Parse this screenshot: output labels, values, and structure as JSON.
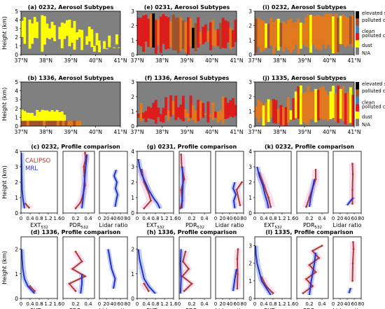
{
  "figure": {
    "aerosol_colors": {
      "elevated smoke": "#000000",
      "polluted dust": "#a0522d",
      "clean": "#4682b4",
      "polluted continental/smoke": "#dd1c1c",
      "dust": "#ffff00",
      "N/A": "#808080",
      "orange_mix": "#e07820"
    },
    "profile_colors": {
      "CALIPSO": "#b03a2e",
      "MRL": "#2d2dc8",
      "MRL_band": "#88aaee",
      "CALIPSO_band": "#f4c2e8"
    },
    "legend_a": [
      "elevated somke",
      "polluted dust",
      "clean",
      "polluted continental/smoke",
      "dust",
      "N/A"
    ],
    "legend_b": [
      "elevated somke",
      "polluted dust",
      "clean",
      "polluted continental/smoke",
      "dust",
      "N/A"
    ],
    "legend_a_title": "",
    "profile_legend": {
      "a": "CALIPSO",
      "b": "MRL"
    },
    "ext_label": "EXT",
    "pdr_label": "PDR",
    "lr_label": "Lidar ratio",
    "sub532": "532",
    "height_label": "Height (km)",
    "lat_ticks": [
      "37°N",
      "38°N",
      "39°N",
      "40°N",
      "41°N"
    ],
    "ext_ticks": [
      "0",
      "0.4",
      "0.8",
      "1.2",
      "1.6"
    ],
    "pdr_ticks": [
      "0",
      "0.2",
      "0.4"
    ],
    "lr_ticks": [
      "0",
      "20",
      "40",
      "60",
      "80"
    ]
  },
  "chart_data": [
    {
      "id": "a",
      "type": "heatmap",
      "title": "(a) 0232, Aerosol Subtypes",
      "ylabel": "Height (km)",
      "xlim": [
        37,
        41
      ],
      "ylim": [
        0,
        5
      ],
      "yticks": [
        "0",
        "1",
        "2",
        "3",
        "4",
        "5"
      ],
      "dominant": [
        "dust",
        "N/A"
      ]
    },
    {
      "id": "e",
      "type": "heatmap",
      "title": "(e) 0231, Aerosol Subtypes",
      "xlim": [
        37,
        41
      ],
      "ylim": [
        0,
        3
      ],
      "yticks": [
        "0",
        "1",
        "2",
        "3"
      ],
      "dominant": [
        "polluted continental/smoke",
        "polluted dust",
        "elevated smoke",
        "N/A"
      ]
    },
    {
      "id": "i",
      "type": "heatmap",
      "title": "(i) 0232, Aerosol Subtypes",
      "xlim": [
        37,
        41
      ],
      "ylim": [
        0,
        3
      ],
      "yticks": [
        "0",
        "1",
        "2",
        "3"
      ],
      "dominant": [
        "polluted dust",
        "dust",
        "N/A"
      ]
    },
    {
      "id": "b",
      "type": "heatmap",
      "title": "(b) 1336, Aerosol Subtypes",
      "ylabel": "Height (km)",
      "xlim": [
        37,
        41
      ],
      "ylim": [
        0,
        5
      ],
      "yticks": [
        "0",
        "1",
        "2",
        "3",
        "4",
        "5"
      ],
      "dominant": [
        "dust",
        "polluted dust",
        "N/A"
      ]
    },
    {
      "id": "f",
      "type": "heatmap",
      "title": "(f) 1336, Aerosol Subtypes",
      "xlim": [
        37,
        41
      ],
      "ylim": [
        0,
        3
      ],
      "yticks": [
        "0",
        "1",
        "2",
        "3"
      ],
      "dominant": [
        "polluted continental/smoke",
        "polluted dust",
        "N/A"
      ]
    },
    {
      "id": "j",
      "type": "heatmap",
      "title": "(j) 1335, Aerosol Subtypes",
      "xlim": [
        37,
        41
      ],
      "ylim": [
        0,
        3
      ],
      "yticks": [
        "0",
        "1",
        "2",
        "3"
      ],
      "dominant": [
        "polluted dust",
        "polluted continental/smoke",
        "N/A"
      ]
    },
    {
      "id": "c",
      "type": "line",
      "title": "(c) 0232, Profile comparison",
      "ylabel": "Height (km)",
      "ylim": [
        0,
        4
      ],
      "yticks": [
        "0",
        "1",
        "2",
        "3",
        "4"
      ],
      "ext_mrl": [
        [
          0.15,
          0.3
        ],
        [
          0.12,
          0.6
        ],
        [
          0.08,
          1.0
        ],
        [
          0.05,
          1.5
        ],
        [
          0.04,
          2.0
        ],
        [
          0.03,
          2.5
        ],
        [
          0.03,
          3.0
        ],
        [
          0.02,
          3.5
        ],
        [
          0.02,
          3.9
        ]
      ],
      "ext_cal": [
        [
          0.35,
          0.35
        ],
        [
          0.2,
          0.6
        ]
      ],
      "pdr_mrl": [
        [
          0.3,
          0.3
        ],
        [
          0.32,
          1.0
        ],
        [
          0.34,
          2.0
        ],
        [
          0.36,
          3.0
        ],
        [
          0.38,
          3.8
        ]
      ],
      "pdr_cal": [
        [
          0.2,
          0.3
        ],
        [
          0.28,
          0.7
        ],
        [
          0.32,
          1.2
        ],
        [
          0.35,
          1.8
        ],
        [
          0.34,
          2.4
        ],
        [
          0.33,
          3.0
        ],
        [
          0.36,
          3.5
        ],
        [
          0.35,
          3.9
        ]
      ],
      "lr_mrl": [
        [
          45,
          0.4
        ],
        [
          48,
          0.8
        ],
        [
          52,
          1.2
        ],
        [
          46,
          1.6
        ],
        [
          50,
          2.0
        ],
        [
          42,
          2.4
        ],
        [
          48,
          2.8
        ]
      ],
      "lr_cal": []
    },
    {
      "id": "g",
      "type": "line",
      "title": "(g) 0231, Profile comparison",
      "ylim": [
        0,
        4
      ],
      "yticks": [
        "0",
        "1",
        "2",
        "3",
        "4"
      ],
      "ext_mrl": [
        [
          1.0,
          0.3
        ],
        [
          0.9,
          0.6
        ],
        [
          0.7,
          1.0
        ],
        [
          0.5,
          1.5
        ],
        [
          0.35,
          2.0
        ],
        [
          0.2,
          2.5
        ],
        [
          0.1,
          3.0
        ],
        [
          0.05,
          3.5
        ]
      ],
      "ext_cal": [
        [
          0.3,
          0.3
        ],
        [
          0.6,
          0.8
        ],
        [
          0.5,
          1.3
        ],
        [
          0.3,
          2.0
        ],
        [
          0.2,
          2.8
        ]
      ],
      "pdr_mrl": [
        [
          0.04,
          0.3
        ],
        [
          0.05,
          1.0
        ],
        [
          0.06,
          2.0
        ],
        [
          0.05,
          3.0
        ]
      ],
      "pdr_cal": [
        [
          0.02,
          0.3
        ],
        [
          0.05,
          0.8
        ],
        [
          0.03,
          1.5
        ],
        [
          0.08,
          2.2
        ],
        [
          0.04,
          3.0
        ],
        [
          0.03,
          3.8
        ]
      ],
      "lr_mrl": [
        [
          55,
          0.3
        ],
        [
          52,
          0.8
        ],
        [
          58,
          1.2
        ],
        [
          50,
          1.6
        ],
        [
          55,
          2.0
        ]
      ],
      "lr_cal": [
        [
          70,
          0.5
        ],
        [
          60,
          1.5
        ],
        [
          75,
          2.0
        ]
      ]
    },
    {
      "id": "k",
      "type": "line",
      "title": "(k) 0232, Profile comparison",
      "ylim": [
        0,
        4
      ],
      "yticks": [
        "0",
        "1",
        "2",
        "3",
        "4"
      ],
      "ext_mrl": [
        [
          0.6,
          0.3
        ],
        [
          0.55,
          0.7
        ],
        [
          0.45,
          1.2
        ],
        [
          0.35,
          1.8
        ],
        [
          0.2,
          2.4
        ],
        [
          0.1,
          3.0
        ]
      ],
      "ext_cal": [
        [
          0.7,
          0.4
        ],
        [
          0.6,
          1.0
        ],
        [
          0.4,
          1.8
        ],
        [
          0.2,
          2.6
        ]
      ],
      "pdr_mrl": [
        [
          0.2,
          0.4
        ],
        [
          0.22,
          1.0
        ],
        [
          0.25,
          1.6
        ],
        [
          0.28,
          2.2
        ]
      ],
      "pdr_cal": [
        [
          0.15,
          0.4
        ],
        [
          0.2,
          1.0
        ],
        [
          0.25,
          1.6
        ],
        [
          0.3,
          2.2
        ],
        [
          0.3,
          2.8
        ]
      ],
      "lr_mrl": [
        [
          40,
          0.5
        ],
        [
          50,
          0.8
        ],
        [
          58,
          1.0
        ]
      ],
      "lr_cal": [
        [
          55,
          0.6
        ],
        [
          55,
          1.5
        ],
        [
          56,
          2.5
        ],
        [
          55,
          3.2
        ]
      ]
    },
    {
      "id": "d",
      "type": "line",
      "title": "(d) 1336, Profile comparison",
      "ylabel": "Height (km)",
      "ylim": [
        0,
        2.5
      ],
      "yticks": [
        "0",
        "1",
        "2"
      ],
      "ext_mrl": [
        [
          0.6,
          0.2
        ],
        [
          0.3,
          0.5
        ],
        [
          0.15,
          0.8
        ],
        [
          0.08,
          1.2
        ],
        [
          0.05,
          1.6
        ],
        [
          0.03,
          2.0
        ]
      ],
      "ext_cal": [
        [
          0.6,
          0.3
        ],
        [
          0.4,
          0.5
        ]
      ],
      "pdr_mrl": [
        [
          0.28,
          0.2
        ],
        [
          0.3,
          0.6
        ],
        [
          0.3,
          1.0
        ]
      ],
      "pdr_cal": [
        [
          0.2,
          0.3
        ],
        [
          0.1,
          0.6
        ],
        [
          0.35,
          0.9
        ],
        [
          0.15,
          1.2
        ],
        [
          0.3,
          1.5
        ],
        [
          0.2,
          1.9
        ]
      ],
      "lr_mrl": [
        [
          40,
          0.4
        ],
        [
          45,
          0.8
        ],
        [
          35,
          1.2
        ],
        [
          30,
          1.6
        ],
        [
          25,
          2.0
        ]
      ],
      "lr_cal": []
    },
    {
      "id": "h",
      "type": "line",
      "title": "(h) 1336, Profile comparison",
      "ylim": [
        0,
        2.5
      ],
      "yticks": [
        "0",
        "1",
        "2"
      ],
      "ext_mrl": [
        [
          0.8,
          0.2
        ],
        [
          0.5,
          0.5
        ],
        [
          0.3,
          0.8
        ],
        [
          0.2,
          1.2
        ],
        [
          0.1,
          1.6
        ],
        [
          0.05,
          2.0
        ]
      ],
      "ext_cal": [
        [
          0.5,
          0.3
        ],
        [
          0.3,
          0.6
        ]
      ],
      "pdr_mrl": [
        [
          0.02,
          0.2
        ],
        [
          0.03,
          0.8
        ],
        [
          0.02,
          1.4
        ],
        [
          0.03,
          2.0
        ]
      ],
      "pdr_cal": [
        [
          0.08,
          0.3
        ],
        [
          0.2,
          0.6
        ],
        [
          0.05,
          0.9
        ],
        [
          0.15,
          1.2
        ],
        [
          0.06,
          1.5
        ],
        [
          0.1,
          1.9
        ]
      ],
      "lr_mrl": [
        [
          50,
          0.3
        ],
        [
          55,
          0.8
        ],
        [
          60,
          1.2
        ]
      ],
      "lr_cal": [
        [
          62,
          0.4
        ],
        [
          63,
          1.0
        ],
        [
          62,
          1.6
        ],
        [
          64,
          2.0
        ]
      ]
    },
    {
      "id": "l",
      "type": "line",
      "title": "(l) 1335, Profile comparison",
      "ylim": [
        0,
        3.5
      ],
      "yticks": [
        "0",
        "1",
        "2",
        "3"
      ],
      "ext_mrl": [
        [
          0.7,
          0.2
        ],
        [
          0.5,
          0.6
        ],
        [
          0.3,
          1.0
        ],
        [
          0.2,
          1.5
        ],
        [
          0.1,
          2.0
        ],
        [
          0.05,
          2.5
        ],
        [
          0.03,
          3.0
        ]
      ],
      "ext_cal": [
        [
          0.8,
          0.3
        ],
        [
          0.5,
          0.7
        ],
        [
          0.3,
          1.2
        ]
      ],
      "pdr_mrl": [
        [
          0.2,
          0.2
        ],
        [
          0.22,
          0.8
        ],
        [
          0.25,
          1.4
        ],
        [
          0.28,
          2.0
        ],
        [
          0.3,
          2.6
        ]
      ],
      "pdr_cal": [
        [
          0.1,
          0.3
        ],
        [
          0.25,
          0.7
        ],
        [
          0.15,
          1.1
        ],
        [
          0.3,
          1.5
        ],
        [
          0.2,
          1.9
        ],
        [
          0.35,
          2.3
        ],
        [
          0.25,
          2.7
        ],
        [
          0.4,
          3.0
        ]
      ],
      "lr_mrl": [
        [
          45,
          0.3
        ],
        [
          50,
          0.6
        ]
      ],
      "lr_cal": [
        [
          55,
          1.0
        ],
        [
          56,
          2.0
        ],
        [
          58,
          2.8
        ],
        [
          57,
          3.2
        ]
      ]
    }
  ]
}
